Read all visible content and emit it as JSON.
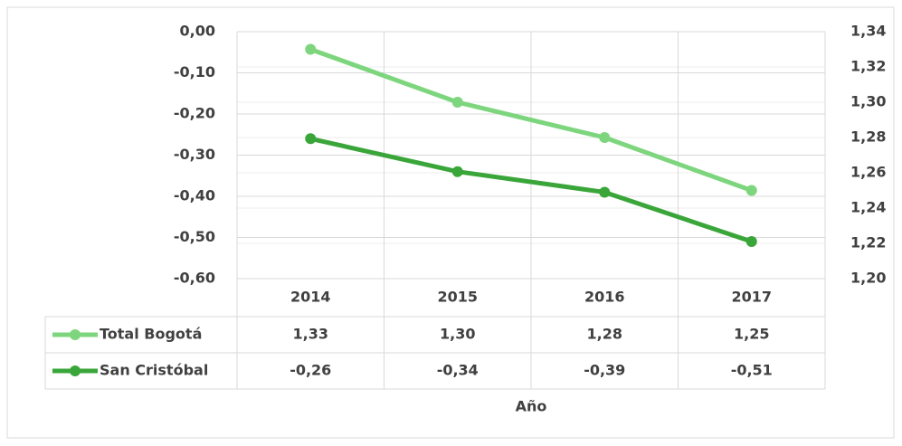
{
  "chart_data": {
    "type": "line",
    "categories": [
      "2014",
      "2015",
      "2016",
      "2017"
    ],
    "xlabel": "Año",
    "series": [
      {
        "name": "Total Bogotá",
        "color": "#7dd67d",
        "axis": "y2",
        "values": [
          1.33,
          1.3,
          1.28,
          1.25
        ],
        "value_labels": [
          "1,33",
          "1,30",
          "1,28",
          "1,25"
        ]
      },
      {
        "name": "San Cristóbal",
        "color": "#3aa63a",
        "values": [
          -0.26,
          -0.34,
          -0.39,
          -0.51
        ],
        "value_labels": [
          "-0,26",
          "-0,34",
          "-0,39",
          "-0,51"
        ]
      }
    ],
    "ylim": [
      -0.6,
      0
    ],
    "yticks": [
      {
        "value": 0,
        "label": "0,00"
      },
      {
        "value": -0.1,
        "label": "-0,10"
      },
      {
        "value": -0.2,
        "label": "-0,20"
      },
      {
        "value": -0.3,
        "label": "-0,30"
      },
      {
        "value": -0.4,
        "label": "-0,40"
      },
      {
        "value": -0.5,
        "label": "-0,50"
      },
      {
        "value": -0.6,
        "label": "-0,60"
      }
    ],
    "y2lim": [
      1.2,
      1.34
    ],
    "y2ticks": [
      {
        "value": 1.34,
        "label": "1,34"
      },
      {
        "value": 1.32,
        "label": "1,32"
      },
      {
        "value": 1.3,
        "label": "1,30"
      },
      {
        "value": 1.28,
        "label": "1,28"
      },
      {
        "value": 1.26,
        "label": "1,26"
      },
      {
        "value": 1.24,
        "label": "1,24"
      },
      {
        "value": 1.22,
        "label": "1,22"
      },
      {
        "value": 1.2,
        "label": "1,20"
      }
    ],
    "grid": true
  }
}
